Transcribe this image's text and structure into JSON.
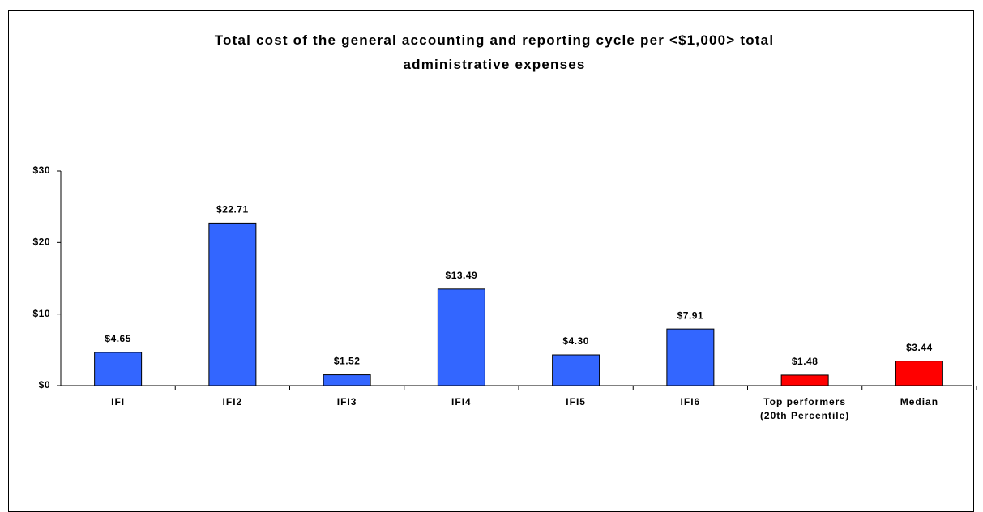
{
  "chart_data": {
    "type": "bar",
    "title": "Total cost of the general accounting and reporting cycle per <$1,000> total administrative expenses",
    "categories": [
      "IFI",
      "IFI2",
      "IFI3",
      "IFI4",
      "IFI5",
      "IFI6",
      "Top performers (20th Percentile)",
      "Median"
    ],
    "values": [
      4.65,
      22.71,
      1.52,
      13.49,
      4.3,
      7.91,
      1.48,
      3.44
    ],
    "value_labels": [
      "$4.65",
      "$22.71",
      "$1.52",
      "$13.49",
      "$4.30",
      "$7.91",
      "$1.48",
      "$3.44"
    ],
    "colors": [
      "#3366ff",
      "#3366ff",
      "#3366ff",
      "#3366ff",
      "#3366ff",
      "#3366ff",
      "#ff0000",
      "#ff0000"
    ],
    "ylim": [
      0,
      30
    ],
    "yticks": [
      {
        "value": 0,
        "label": "$0"
      },
      {
        "value": 10,
        "label": "$10"
      },
      {
        "value": 20,
        "label": "$20"
      },
      {
        "value": 30,
        "label": "$30"
      }
    ],
    "grid": false
  }
}
